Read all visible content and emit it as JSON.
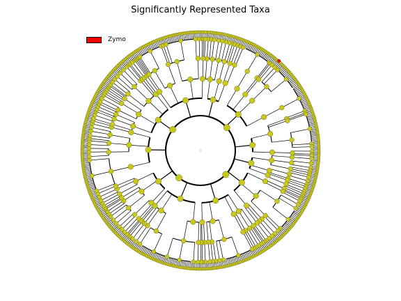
{
  "figure": {
    "title": "Significantly Represented Taxa"
  },
  "legend": {
    "items": [
      {
        "label": "Zymo",
        "color": "#ff0000"
      }
    ]
  },
  "colors": {
    "node_fill": "#c8c81e",
    "node_edge": "#6e6e1e",
    "highlight": "#ff0000",
    "branch": "#000000"
  },
  "tree": {
    "layout": "circular cladogram",
    "levels": 7,
    "highlighted_clades": [
      "Zymo"
    ]
  }
}
